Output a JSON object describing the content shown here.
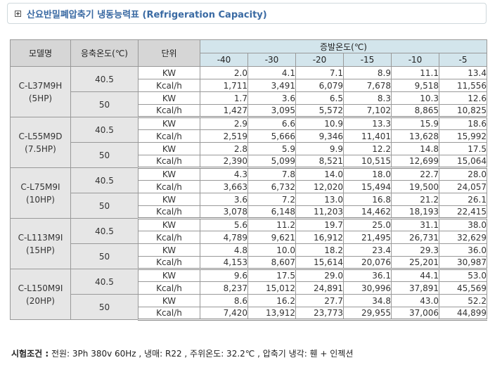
{
  "title": "산요반밀폐압축기 냉동능력표 (Refrigeration Capacity)",
  "headers": {
    "model": "모델명",
    "cond_temp": "응축온도(℃)",
    "unit": "단위",
    "evap_temp": "증발온도(℃)",
    "evap_cols": [
      "-40",
      "-30",
      "-20",
      "-15",
      "-10",
      "-5"
    ]
  },
  "models": [
    {
      "name": "C-L37M9H",
      "hp": "(5HP)",
      "groups": [
        {
          "cond": "40.5",
          "rows": [
            {
              "unit": "KW",
              "values": [
                "2.0",
                "4.1",
                "7.1",
                "8.9",
                "11.1",
                "13.4"
              ]
            },
            {
              "unit": "Kcal/h",
              "values": [
                "1,711",
                "3,491",
                "6,079",
                "7,678",
                "9,518",
                "11,556"
              ]
            }
          ]
        },
        {
          "cond": "50",
          "rows": [
            {
              "unit": "KW",
              "values": [
                "1.7",
                "3.6",
                "6.5",
                "8.3",
                "10.3",
                "12.6"
              ]
            },
            {
              "unit": "Kcal/h",
              "values": [
                "1,427",
                "3,095",
                "5,572",
                "7,102",
                "8,865",
                "10,825"
              ]
            }
          ]
        }
      ]
    },
    {
      "name": "C-L55M9D",
      "hp": "(7.5HP)",
      "groups": [
        {
          "cond": "40.5",
          "rows": [
            {
              "unit": "KW",
              "values": [
                "2.9",
                "6.6",
                "10.9",
                "13.3",
                "15.9",
                "18.6"
              ]
            },
            {
              "unit": "Kcal/h",
              "values": [
                "2,519",
                "5,666",
                "9,346",
                "11,401",
                "13,628",
                "15,992"
              ]
            }
          ]
        },
        {
          "cond": "50",
          "rows": [
            {
              "unit": "KW",
              "values": [
                "2.8",
                "5.9",
                "9.9",
                "12.2",
                "14.8",
                "17.5"
              ]
            },
            {
              "unit": "Kcal/h",
              "values": [
                "2,390",
                "5,099",
                "8,521",
                "10,515",
                "12,699",
                "15,064"
              ]
            }
          ]
        }
      ]
    },
    {
      "name": "C-L75M9I",
      "hp": "(10HP)",
      "groups": [
        {
          "cond": "40.5",
          "rows": [
            {
              "unit": "KW",
              "values": [
                "4.3",
                "7.8",
                "14.0",
                "18.0",
                "22.7",
                "28.0"
              ]
            },
            {
              "unit": "Kcal/h",
              "values": [
                "3,663",
                "6,732",
                "12,020",
                "15,494",
                "19,500",
                "24,057"
              ]
            }
          ]
        },
        {
          "cond": "50",
          "rows": [
            {
              "unit": "KW",
              "values": [
                "3.6",
                "7.2",
                "13.0",
                "16.8",
                "21.2",
                "26.1"
              ]
            },
            {
              "unit": "Kcal/h",
              "values": [
                "3,078",
                "6,148",
                "11,203",
                "14,462",
                "18,193",
                "22,415"
              ]
            }
          ]
        }
      ]
    },
    {
      "name": "C-L113M9I",
      "hp": "(15HP)",
      "groups": [
        {
          "cond": "40.5",
          "rows": [
            {
              "unit": "KW",
              "values": [
                "5.6",
                "11.2",
                "19.7",
                "25.0",
                "31.1",
                "38.0"
              ]
            },
            {
              "unit": "Kcal/h",
              "values": [
                "4,789",
                "9,621",
                "16,912",
                "21,495",
                "26,731",
                "32,629"
              ]
            }
          ]
        },
        {
          "cond": "50",
          "rows": [
            {
              "unit": "KW",
              "values": [
                "4.8",
                "10.0",
                "18.2",
                "23.4",
                "29.3",
                "36.0"
              ]
            },
            {
              "unit": "Kcal/h",
              "values": [
                "4,153",
                "8,607",
                "15,614",
                "20,076",
                "25,201",
                "30,987"
              ]
            }
          ]
        }
      ]
    },
    {
      "name": "C-L150M9I",
      "hp": "(20HP)",
      "groups": [
        {
          "cond": "40.5",
          "rows": [
            {
              "unit": "KW",
              "values": [
                "9.6",
                "17.5",
                "29.0",
                "36.1",
                "44.1",
                "53.0"
              ]
            },
            {
              "unit": "Kcal/h",
              "values": [
                "8,237",
                "15,012",
                "24,891",
                "30,996",
                "37,891",
                "45,569"
              ]
            }
          ]
        },
        {
          "cond": "50",
          "rows": [
            {
              "unit": "KW",
              "values": [
                "8.6",
                "16.2",
                "27.7",
                "34.8",
                "43.0",
                "52.2"
              ]
            },
            {
              "unit": "Kcal/h",
              "values": [
                "7,420",
                "13,912",
                "23,773",
                "29,955",
                "37,006",
                "44,899"
              ]
            }
          ]
        }
      ]
    }
  ],
  "footer": {
    "label": "시험조건 :",
    "text": "전원: 3Ph 380v 60Hz ,  냉매: R22 ,  주위온도: 32.2℃ ,  압축기 냉각: 휀 + 인젝션"
  }
}
